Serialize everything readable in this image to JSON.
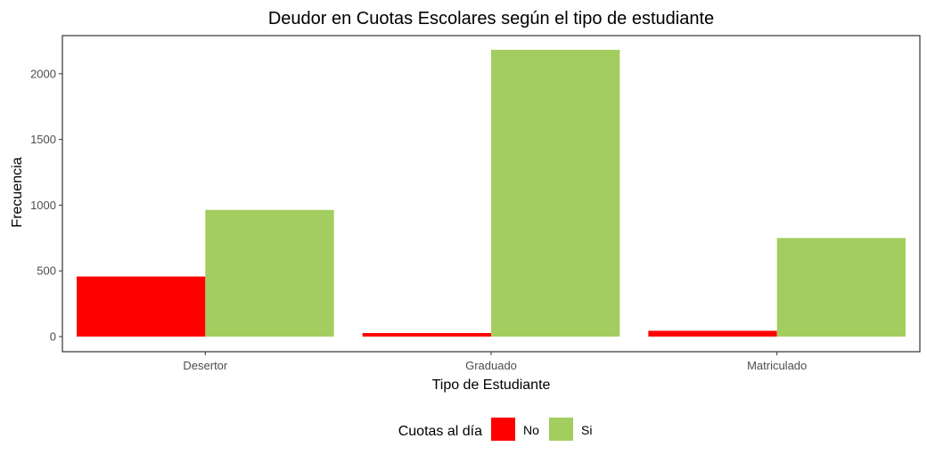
{
  "chart_data": {
    "type": "bar",
    "title": "Deudor en Cuotas Escolares según el tipo de estudiante",
    "xlabel": "Tipo de Estudiante",
    "ylabel": "Frecuencia",
    "categories": [
      "Desertor",
      "Graduado",
      "Matriculado"
    ],
    "series": [
      {
        "name": "No",
        "color": "#ff0000",
        "values": [
          457,
          27,
          44
        ]
      },
      {
        "name": "Si",
        "color": "#a3cd5e",
        "values": [
          964,
          2182,
          750
        ]
      }
    ],
    "ylim": [
      -115,
      2290
    ],
    "yticks": [
      0,
      500,
      1000,
      1500,
      2000
    ],
    "grid": false,
    "legend": {
      "title": "Cuotas al día",
      "position": "bottom",
      "items": [
        "No",
        "Si"
      ]
    }
  }
}
